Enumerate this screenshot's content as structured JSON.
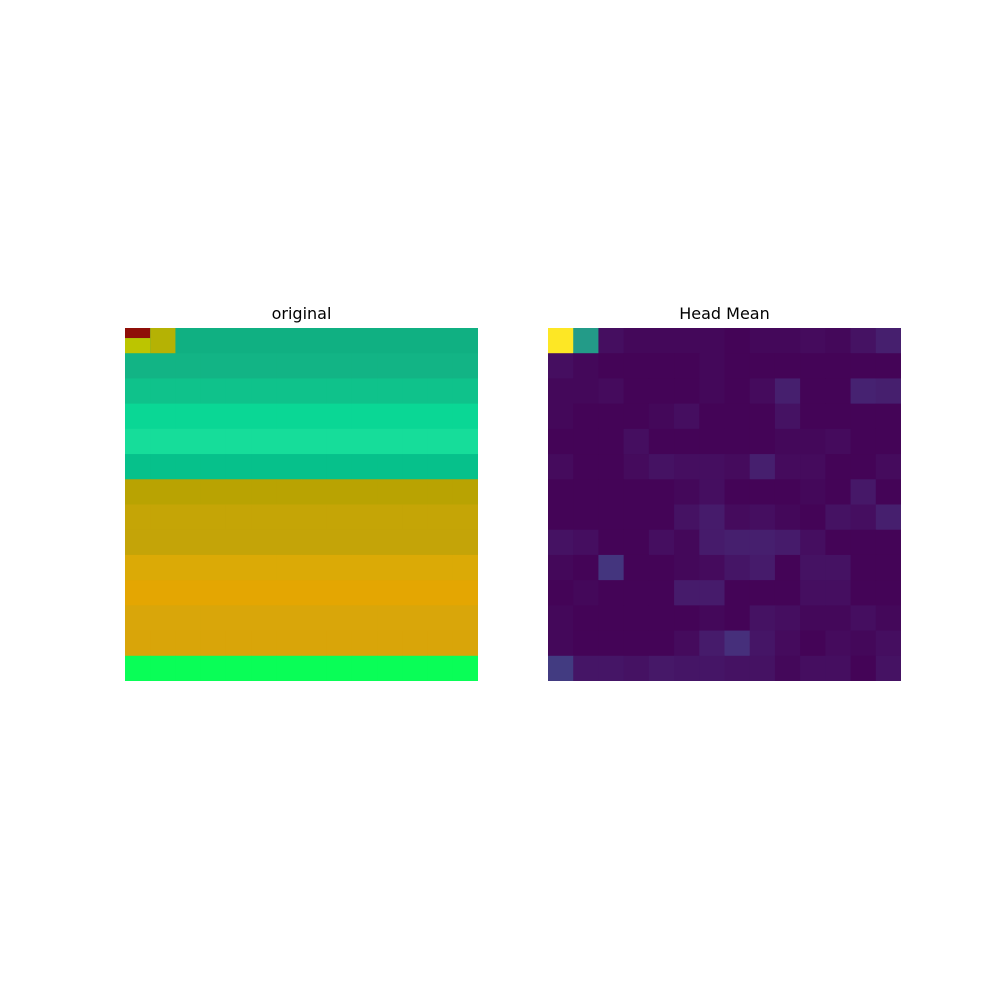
{
  "chart_data": [
    {
      "type": "heatmap",
      "title": "original",
      "rows": 14,
      "cols": 14,
      "axes": "off",
      "colorbar": false,
      "row_bands": [
        [
          "#10b082",
          "#12b485",
          "#0bbc89",
          "#05c98f",
          "#02cf92",
          "#06c18b",
          "#b08b08",
          "#b9a302",
          "#d2a808",
          "#e0a905",
          "#e4a602",
          "#d8a704",
          "#e0a505",
          "#d8a20a"
        ],
        [
          "#10b082",
          "#12b485",
          "#0bbc89",
          "#05c98f",
          "#02cf92",
          "#06c18b",
          "#b9a302",
          "#c0a404",
          "#cfa60a",
          "#deaa03",
          "#e4a602",
          "#d9a60a",
          "#e2a607",
          "#f0a801"
        ],
        [
          "#0fb182",
          "#11b585",
          "#0fc28b",
          "#06c990",
          "#04d195",
          "#0ed493",
          "#b9a202",
          "#c5a506",
          "#d5a907",
          "#dba704",
          "#c8b301",
          "#d6a706",
          "#d9a509",
          "#1cdc60"
        ],
        [
          "#12b084",
          "#14b486",
          "#0bc18b",
          "#0ad795",
          "#05d598",
          "#16d696",
          "#b3a507",
          "#c0a404",
          "#c4a408",
          "#d2a702",
          "#cbb002",
          "#e2a70c",
          "#c89c0f",
          "#09fe57"
        ],
        [
          "#0db083",
          "#11b385",
          "#12c48d",
          "#11d795",
          "#16dd9a",
          "#12cf93",
          "#b7a804",
          "#cca305",
          "#d2a808",
          "#dbaa06",
          "#d6a205",
          "#d6a808",
          "#c49a0e",
          "#1fee62"
        ]
      ],
      "top_left_patch": [
        "#8f0f08",
        "#bcc500",
        "#b5b204"
      ]
    },
    {
      "type": "heatmap",
      "title": "Head Mean",
      "rows": 14,
      "cols": 14,
      "axes": "off",
      "colorbar": false,
      "colormap": "viridis",
      "values": [
        [
          1.0,
          0.55,
          0.04,
          0.02,
          0.02,
          0.02,
          0.02,
          0.01,
          0.02,
          0.02,
          0.03,
          0.02,
          0.05,
          0.09
        ],
        [
          0.04,
          0.02,
          0.01,
          0.01,
          0.01,
          0.01,
          0.02,
          0.01,
          0.01,
          0.01,
          0.01,
          0.01,
          0.01,
          0.01
        ],
        [
          0.02,
          0.02,
          0.03,
          0.01,
          0.01,
          0.01,
          0.02,
          0.01,
          0.03,
          0.09,
          0.01,
          0.01,
          0.1,
          0.09
        ],
        [
          0.02,
          0.01,
          0.01,
          0.01,
          0.02,
          0.04,
          0.01,
          0.01,
          0.01,
          0.05,
          0.01,
          0.01,
          0.01,
          0.01
        ],
        [
          0.01,
          0.01,
          0.01,
          0.04,
          0.01,
          0.01,
          0.01,
          0.01,
          0.01,
          0.02,
          0.02,
          0.03,
          0.01,
          0.01
        ],
        [
          0.03,
          0.01,
          0.01,
          0.03,
          0.05,
          0.04,
          0.04,
          0.03,
          0.09,
          0.03,
          0.03,
          0.01,
          0.01,
          0.03
        ],
        [
          0.01,
          0.01,
          0.01,
          0.01,
          0.01,
          0.02,
          0.04,
          0.01,
          0.01,
          0.01,
          0.02,
          0.01,
          0.07,
          0.01
        ],
        [
          0.01,
          0.01,
          0.01,
          0.01,
          0.01,
          0.05,
          0.08,
          0.03,
          0.04,
          0.02,
          0.01,
          0.05,
          0.04,
          0.09
        ],
        [
          0.05,
          0.04,
          0.01,
          0.01,
          0.04,
          0.02,
          0.08,
          0.09,
          0.09,
          0.08,
          0.04,
          0.01,
          0.01,
          0.01
        ],
        [
          0.02,
          0.01,
          0.16,
          0.01,
          0.01,
          0.02,
          0.03,
          0.06,
          0.08,
          0.01,
          0.05,
          0.05,
          0.01,
          0.01
        ],
        [
          0.01,
          0.02,
          0.01,
          0.01,
          0.01,
          0.08,
          0.08,
          0.01,
          0.01,
          0.01,
          0.04,
          0.04,
          0.01,
          0.01
        ],
        [
          0.02,
          0.01,
          0.01,
          0.01,
          0.01,
          0.01,
          0.02,
          0.01,
          0.05,
          0.04,
          0.02,
          0.02,
          0.04,
          0.02
        ],
        [
          0.02,
          0.01,
          0.01,
          0.01,
          0.01,
          0.03,
          0.08,
          0.14,
          0.06,
          0.03,
          0.01,
          0.03,
          0.02,
          0.04
        ],
        [
          0.18,
          0.06,
          0.06,
          0.05,
          0.07,
          0.06,
          0.06,
          0.05,
          0.05,
          0.02,
          0.04,
          0.04,
          0.01,
          0.05
        ]
      ]
    }
  ]
}
